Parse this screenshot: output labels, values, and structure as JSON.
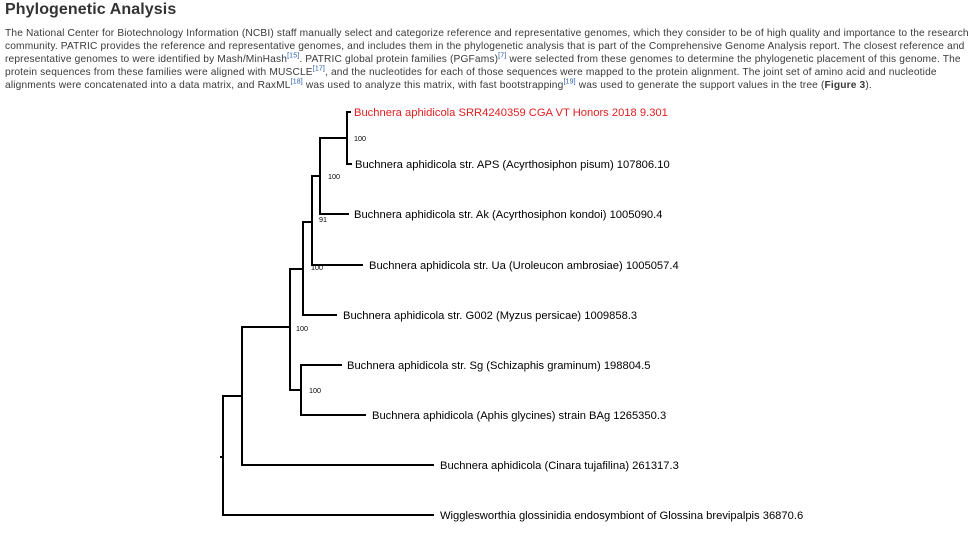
{
  "section": {
    "title": "Phylogenetic Analysis"
  },
  "paragraph": {
    "p1": "The National Center for Biotechnology Information (NCBI) staff manually select and categorize reference and representative genomes, which they consider to be of high quality and importance to the research community. PATRIC provides the reference and representative genomes, and includes them in the phylogenetic analysis that is part of the Comprehensive Genome Analysis report. The closest reference and representative genomes to were identified by Mash/MinHash",
    "ref15": "[15]",
    "p2": ". PATRIC global protein families (PGFams)",
    "ref7": "[7]",
    "p3": " were selected from these genomes to determine the phylogenetic placement of this genome. The protein sequences from these families were aligned with MUSCLE",
    "ref17": "[17]",
    "p4": ", and the nucleotides for each of those sequences were mapped to the protein alignment. The joint set of amino acid and nucleotide alignments were concatenated into a data matrix, and RaxML",
    "ref18": "[18]",
    "p5": " was used to analyze this matrix, with fast bootstrapping",
    "ref19": "[19]",
    "p6": " was used to generate the support values in the tree (",
    "figure_ref": "Figure 3",
    "p7": ")."
  },
  "tree": {
    "leaves": [
      {
        "label": "Buchnera aphidicola SRR4240359 CGA VT Honors 2018 9.301",
        "highlight": true
      },
      {
        "label": "Buchnera aphidicola str. APS (Acyrthosiphon pisum) 107806.10",
        "highlight": false
      },
      {
        "label": "Buchnera aphidicola str. Ak (Acyrthosiphon kondoi) 1005090.4",
        "highlight": false
      },
      {
        "label": "Buchnera aphidicola str. Ua (Uroleucon ambrosiae) 1005057.4",
        "highlight": false
      },
      {
        "label": "Buchnera aphidicola str. G002 (Myzus persicae) 1009858.3",
        "highlight": false
      },
      {
        "label": "Buchnera aphidicola str. Sg (Schizaphis graminum) 198804.5",
        "highlight": false
      },
      {
        "label": "Buchnera aphidicola (Aphis glycines) strain BAg 1265350.3",
        "highlight": false
      },
      {
        "label": "Buchnera aphidicola (Cinara tujafilina) 261317.3",
        "highlight": false
      },
      {
        "label": "Wigglesworthia glossinidia endosymbiont of Glossina brevipalpis 36870.6",
        "highlight": false
      }
    ],
    "support_values": [
      "100",
      "100",
      "91",
      "100",
      "100",
      "100"
    ],
    "colors": {
      "branch": "#000000",
      "highlight_leaf": "#e02020",
      "normal_leaf": "#000000"
    }
  }
}
